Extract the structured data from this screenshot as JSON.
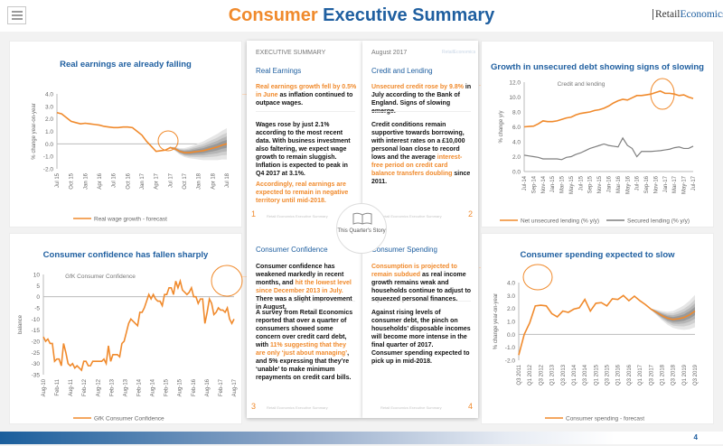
{
  "header": {
    "title_part1": "Consumer",
    "title_part2": "Executive Summary",
    "logo_part1": "Retail",
    "logo_part2": "Economics",
    "menu_icon": "list-icon"
  },
  "colors": {
    "accent": "#f08a2c",
    "brand": "#1f5fa0",
    "secondary_series": "#7f7f7f"
  },
  "panels": {
    "real_earnings": {
      "title": "Real earnings are already falling"
    },
    "unsecured_debt": {
      "title": "Growth in unsecured debt showing signs of slowing"
    },
    "confidence": {
      "title": "Consumer confidence has fallen sharply"
    },
    "spending": {
      "title": "Consumer spending expected to slow"
    }
  },
  "chart_data": [
    {
      "type": "line",
      "ylabel": "% change year-on-year",
      "ylim": [
        -2,
        4
      ],
      "yticks": [
        "4.0",
        "3.0",
        "2.0",
        "1.0",
        "0.0",
        "-1.0",
        "-2.0"
      ],
      "xticks": [
        "Jul 15",
        "Oct 15",
        "Jan 16",
        "Apr 16",
        "Jul 16",
        "Oct 16",
        "Jan 17",
        "Apr 17",
        "Jul 17",
        "Oct 17",
        "Jan 18",
        "Apr 18",
        "Jul 18"
      ],
      "series": [
        {
          "name": "Real wage growth - forecast",
          "color": "#f08a2c",
          "values": [
            2.5,
            2.4,
            2.1,
            1.8,
            1.7,
            1.6,
            1.65,
            1.6,
            1.55,
            1.5,
            1.4,
            1.35,
            1.3,
            1.3,
            1.35,
            1.35,
            1.3,
            1.0,
            0.7,
            0.2,
            -0.2,
            -0.6,
            -0.55,
            -0.5,
            -0.3,
            -0.4,
            -0.6,
            -0.7,
            -0.7,
            -0.65,
            -0.6,
            -0.55,
            -0.45,
            -0.35,
            -0.25,
            -0.1,
            0.0
          ]
        }
      ],
      "forecast_from_index": 24,
      "fan": true
    },
    {
      "type": "line",
      "title": "Credit and lending",
      "ylabel": "% change y/y",
      "ylim": [
        0,
        12
      ],
      "yticks": [
        "12.0",
        "10.0",
        "8.0",
        "6.0",
        "4.0",
        "2.0",
        "0.0"
      ],
      "xticks": [
        "Jul-14",
        "Sep-14",
        "Nov-14",
        "Jan-15",
        "Mar-15",
        "May-15",
        "Jul-15",
        "Sep-15",
        "Nov-15",
        "Jan-16",
        "Mar-16",
        "May-16",
        "Jul-16",
        "Sep-16",
        "Nov-16",
        "Jan-17",
        "Mar-17",
        "May-17",
        "Jul-17"
      ],
      "series": [
        {
          "name": "Net unsecured lending (% y/y)",
          "color": "#f08a2c",
          "values": [
            6.0,
            6.05,
            6.1,
            6.4,
            6.8,
            6.7,
            6.7,
            6.8,
            7.0,
            7.2,
            7.3,
            7.6,
            7.8,
            7.9,
            8.0,
            8.2,
            8.3,
            8.5,
            8.8,
            9.2,
            9.5,
            9.7,
            9.6,
            9.9,
            10.2,
            10.2,
            10.3,
            10.4,
            10.6,
            10.8,
            10.5,
            10.5,
            10.4,
            10.2,
            10.3,
            10.0,
            9.8
          ]
        },
        {
          "name": "Secured lending (% y/y)",
          "color": "#7f7f7f",
          "values": [
            2.2,
            2.1,
            2.0,
            1.9,
            1.7,
            1.7,
            1.7,
            1.7,
            1.6,
            1.9,
            2.0,
            2.3,
            2.5,
            2.8,
            3.1,
            3.3,
            3.5,
            3.7,
            3.5,
            3.4,
            3.3,
            4.5,
            3.5,
            3.1,
            2.0,
            2.7,
            2.7,
            2.7,
            2.75,
            2.8,
            2.9,
            3.0,
            3.2,
            3.3,
            3.1,
            3.1,
            3.4
          ]
        }
      ]
    },
    {
      "type": "line",
      "title": "GfK Consumer Confidence",
      "ylabel": "balance",
      "ylim": [
        -35,
        10
      ],
      "yticks": [
        "10",
        "5",
        "0",
        "-5",
        "-10",
        "-15",
        "-20",
        "-25",
        "-30",
        "-35"
      ],
      "xticks": [
        "Aug-10",
        "Feb-11",
        "Aug-11",
        "Feb-12",
        "Aug-12",
        "Feb-13",
        "Aug-13",
        "Feb-14",
        "Aug-14",
        "Feb-15",
        "Aug-15",
        "Feb-16",
        "Aug-16",
        "Feb-17",
        "Aug-17"
      ],
      "series": [
        {
          "name": "GfK Consumer Confidence",
          "color": "#f08a2c",
          "values": [
            -18,
            -20,
            -19,
            -21,
            -21,
            -29,
            -28,
            -28,
            -31,
            -21,
            -25,
            -30,
            -31,
            -30,
            -32,
            -31,
            -32,
            -33,
            -29,
            -29,
            -31,
            -31,
            -29,
            -29,
            -29,
            -29,
            -29,
            -28,
            -30,
            -22,
            -29,
            -26,
            -26,
            -26,
            -27,
            -21,
            -20,
            -16,
            -12,
            -10,
            -11,
            -12,
            -13,
            -7,
            -7,
            -5,
            -2,
            1,
            -1,
            1,
            -1,
            -2,
            -2,
            -4,
            1,
            1,
            4,
            4,
            1,
            7,
            4,
            7,
            3,
            2,
            1,
            2,
            4,
            0,
            0,
            -3,
            -1,
            -1,
            -12,
            -7,
            -1,
            -3,
            -8,
            -7,
            -5,
            -6,
            -6,
            -7,
            -5,
            -10,
            -12,
            -10
          ]
        }
      ]
    },
    {
      "type": "line",
      "ylabel": "% change year-on-year",
      "ylim": [
        -2,
        4
      ],
      "yticks": [
        "4.0",
        "3.0",
        "2.0",
        "1.0",
        "0.0",
        "-1.0",
        "-2.0"
      ],
      "xticks": [
        "Q3 2011",
        "Q1 2012",
        "Q3 2012",
        "Q1 2013",
        "Q3 2013",
        "Q1 2014",
        "Q3 2014",
        "Q1 2015",
        "Q3 2015",
        "Q1 2016",
        "Q3 2016",
        "Q1 2017",
        "Q3 2017",
        "Q1 2018",
        "Q3 2018",
        "Q1 2019",
        "Q3 2019"
      ],
      "series": [
        {
          "name": "Consumer spending - forecast",
          "color": "#f08a2c",
          "values": [
            -1.6,
            0.0,
            0.9,
            2.2,
            2.25,
            2.2,
            1.6,
            1.35,
            1.8,
            1.7,
            1.95,
            2.05,
            2.7,
            1.8,
            2.4,
            2.45,
            2.2,
            2.75,
            2.7,
            3.0,
            2.6,
            2.95,
            2.6,
            2.3,
            1.95,
            1.7,
            1.45,
            1.25,
            1.15,
            1.2,
            1.3,
            1.5,
            1.8
          ]
        }
      ],
      "forecast_from_index": 24,
      "fan": true
    }
  ],
  "book": {
    "story_label": "This Quarter's Story",
    "footer": "Retail Economics Executive Summary",
    "page1": {
      "header": "EXECUTIVE SUMMARY",
      "section": "Real Earnings",
      "number": "1",
      "p1_hl": "Real earnings growth fell by 0.5% in June",
      "p1": " as inflation continued to outpace wages.",
      "p2": "Wages rose by just 2.1% according to the most recent data. With business investment also faltering, we expect wage growth to remain sluggish. Inflation is expected to peak in Q4 2017 at 3.1%.",
      "p3_hl": "Accordingly, real earnings are expected to remain in negative territory until mid-2018."
    },
    "page2": {
      "header": "August 2017",
      "section": "Credit and Lending",
      "number": "2",
      "logo": "RetailEconomics",
      "p1_hl": "Unsecured credit rose by 9.8%",
      "p1": " in July according to the Bank of England. Signs of slowing emerge.",
      "p2": "Credit conditions remain supportive towards borrowing, with interest rates on a £10,000 personal loan close to record lows and the average ",
      "p2_hl": "interest-free period on credit card balance transfers doubling",
      "p2_end": " since 2011."
    },
    "page3": {
      "section": "Consumer Confidence",
      "number": "3",
      "p1": "Consumer confidence has weakened markedly in recent months, and ",
      "p1_hl": "hit the lowest level since December 2013 in July.",
      "p1_end": " There was a slight improvement in August.",
      "p2": "A survey from Retail Economics reported that over a quarter of consumers showed some concern over credit card debt, with ",
      "p2_hl": "11% suggesting that they are only ‘just about managing’",
      "p2_end": ", and 5% expressing that they’re ‘unable’ to make minimum repayments on credit card bills."
    },
    "page4": {
      "section": "Consumer Spending",
      "number": "4",
      "p1_hl": "Consumption is projected to remain subdued",
      "p1": " as real income growth remains weak and households continue to adjust to squeezed personal finances.",
      "p2": "Against rising levels of consumer debt, the pinch on households’ disposable incomes will become more intense in the final quarter of 2017.",
      "p3": "Consumer spending expected to pick up in mid-2018."
    }
  },
  "footer": {
    "page_number": "4"
  }
}
